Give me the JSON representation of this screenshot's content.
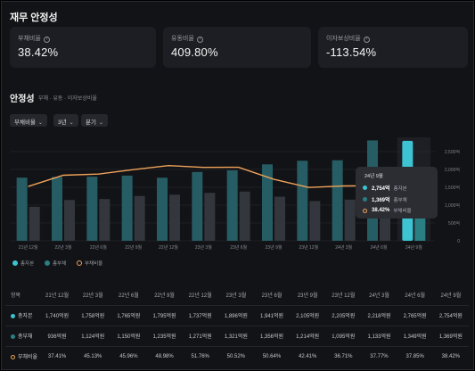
{
  "page_title": "재무 안정성",
  "cards": [
    {
      "label": "부채비율",
      "value": "38.42%"
    },
    {
      "label": "유동비율",
      "value": "409.80%"
    },
    {
      "label": "이자보상비율",
      "value": "-113.54%"
    }
  ],
  "section": {
    "title": "안정성",
    "subtitle": "부채 · 유동 · 이자보상비율"
  },
  "filters": {
    "metric": "부채비율",
    "period": "3년",
    "unit": "분기"
  },
  "colors": {
    "equity": "#3ec3d3",
    "debt": "#2a7f82",
    "ratio": "#f0a35a",
    "grid": "#2b2d33"
  },
  "tooltip": {
    "title": "24년 9월",
    "rows": [
      {
        "value": "2,754억",
        "name": "총자본"
      },
      {
        "value": "1,369억",
        "name": "총부채"
      },
      {
        "value": "38.42%",
        "name": "부채비율"
      }
    ]
  },
  "legend": [
    "총자본",
    "총부채",
    "부채비율"
  ],
  "table": {
    "header_label": "항목",
    "rows": [
      {
        "name": "총자본",
        "values": [
          "1,740억원",
          "1,758억원",
          "1,765억원",
          "1,795억원",
          "1,737억원",
          "1,896억원",
          "1,941억원",
          "2,105억원",
          "2,205억원",
          "2,218억원",
          "2,765억원",
          "2,754억원"
        ]
      },
      {
        "name": "총부채",
        "values": [
          "936억원",
          "1,124억원",
          "1,150억원",
          "1,235억원",
          "1,271억원",
          "1,321억원",
          "1,356억원",
          "1,214억원",
          "1,095억원",
          "1,133억원",
          "1,349억원",
          "1,369억원"
        ]
      },
      {
        "name": "부채비율",
        "values": [
          "37.41%",
          "45.13%",
          "45.96%",
          "48.98%",
          "51.76%",
          "50.52%",
          "50.64%",
          "42.41%",
          "36.71%",
          "37.77%",
          "37.85%",
          "38.42%"
        ]
      }
    ]
  },
  "chart_data": {
    "type": "bar",
    "categories": [
      "21년 12월",
      "22년 3월",
      "22년 6월",
      "22년 9월",
      "22년 12월",
      "23년 3월",
      "23년 6월",
      "23년 9월",
      "23년 12월",
      "24년 3월",
      "24년 6월",
      "24년 9월"
    ],
    "series": [
      {
        "name": "총자본",
        "type": "bar",
        "axis": "left",
        "values": [
          1740,
          1758,
          1765,
          1795,
          1737,
          1896,
          1941,
          2105,
          2205,
          2218,
          2765,
          2754
        ]
      },
      {
        "name": "총부채",
        "type": "bar",
        "axis": "left",
        "values": [
          936,
          1124,
          1150,
          1235,
          1271,
          1321,
          1356,
          1214,
          1095,
          1133,
          1349,
          1369
        ]
      },
      {
        "name": "부채비율",
        "type": "line",
        "axis": "right",
        "values": [
          37.41,
          45.13,
          45.96,
          48.98,
          51.76,
          50.52,
          50.64,
          42.41,
          36.71,
          37.77,
          37.85,
          38.42
        ]
      }
    ],
    "right_ticks": [
      "2,500억",
      "2,000억",
      "1,500억",
      "1,000억",
      "500억",
      "0"
    ],
    "left_ylim": [
      0,
      2800
    ],
    "ratio_ylim": [
      0,
      70
    ],
    "highlight_index": 11,
    "grid": true
  }
}
